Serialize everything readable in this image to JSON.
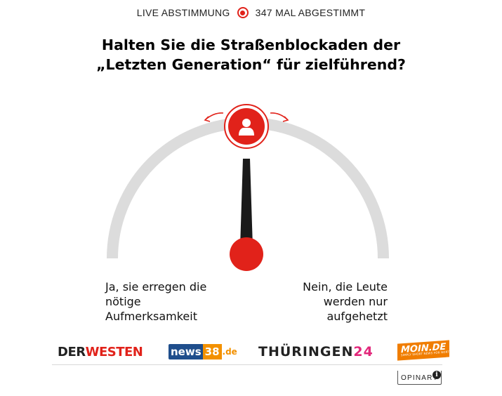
{
  "header": {
    "live_label": "LIVE ABSTIMMUNG",
    "vote_count_label": "347 MAL ABGESTIMMT",
    "accent_color": "#e1221a"
  },
  "question": {
    "line1": "Halten Sie die Straßenblockaden der",
    "line2": "„Letzten Generation“ für zielführend?"
  },
  "gauge": {
    "slider_value": 0.5,
    "handle_icon": "user-icon",
    "arrows_icon": "drag-arrows-icon",
    "track_color": "#d9d9d9",
    "needle_color": "#1a1a1a",
    "accent_color": "#e1221a"
  },
  "answers": {
    "left": {
      "line1": "Ja, sie erregen die",
      "line2": "nötige",
      "line3": "Aufmerksamkeit"
    },
    "right": {
      "line1": "Nein, die Leute",
      "line2": "werden nur",
      "line3": "aufgehetzt"
    }
  },
  "logos": {
    "derwesten_der": "DER",
    "derwesten_westen": "WESTEN",
    "news38_news": "news",
    "news38_num": "38",
    "news38_de": ".de",
    "thueringen_text": "THÜRINGEN",
    "thueringen_num": "24",
    "moin_text": "MOIN.DE",
    "moin_tagline": "SIMPLY SHORT NEWS FOR NORTH"
  },
  "footer": {
    "brand": "OPINARY",
    "info_icon": "info-icon",
    "info_glyph": "i"
  }
}
